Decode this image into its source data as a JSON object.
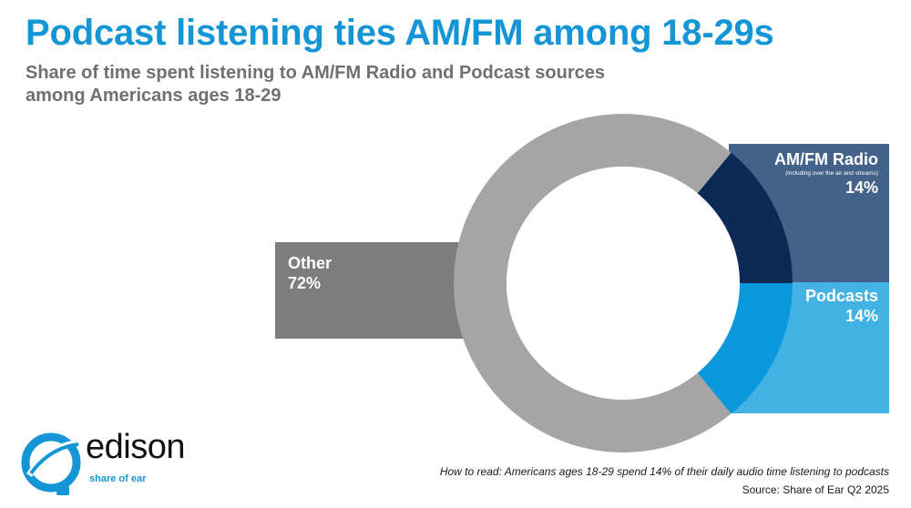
{
  "title": "Podcast listening ties AM/FM among 18-29s",
  "subtitle": "Share of time spent listening to AM/FM Radio and Podcast sources among Americans ages 18-29",
  "chart_data": {
    "type": "pie",
    "style": "donut",
    "slices": [
      {
        "label": "AM/FM Radio",
        "note": "(including over the air and streams)",
        "value": 14,
        "value_label": "14%",
        "color": "#0d2a57",
        "panel_color": "#44618a"
      },
      {
        "label": "Podcasts",
        "value": 14,
        "value_label": "14%",
        "color": "#0b97db",
        "panel_color": "#42b1e4"
      },
      {
        "label": "Other",
        "value": 72,
        "value_label": "72%",
        "color": "#a5a5a5",
        "panel_color": "#7d7d7d"
      }
    ]
  },
  "footnote": {
    "how_to_read": "How to read: Americans ages 18-29 spend 14% of their daily audio time listening to podcasts",
    "source": "Source: Share of Ear Q2 2025"
  },
  "logo": {
    "wordmark": "edison",
    "tagline": "share of ear",
    "color": "#1496d6"
  }
}
